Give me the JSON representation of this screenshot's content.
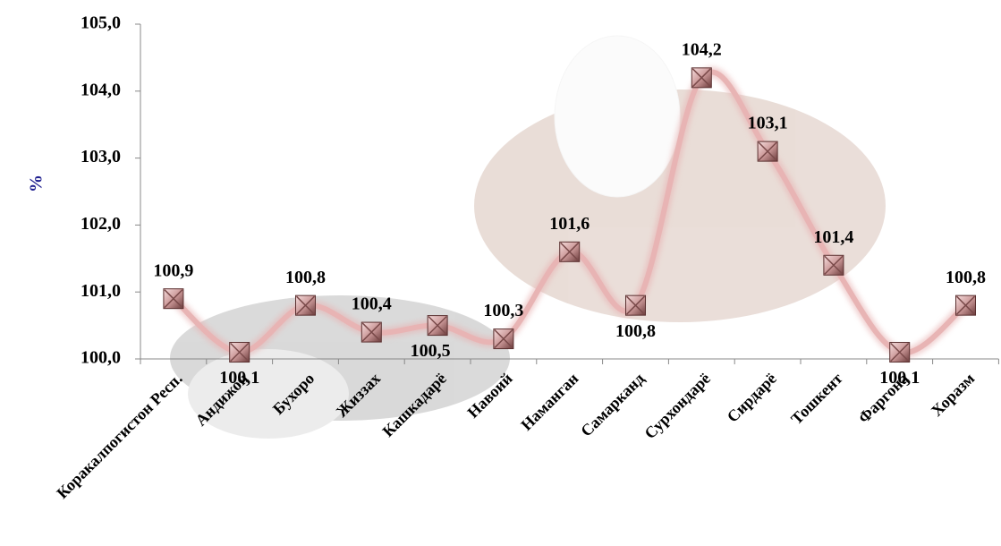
{
  "chart_data": {
    "type": "line",
    "y_label": "%",
    "categories": [
      "Коракалпогистон Респ.",
      "Андижон",
      "Бухоро",
      "Жиззах",
      "Кашкадарё",
      "Навоий",
      "Наманган",
      "Самарканд",
      "Сурхондарё",
      "Сирдарё",
      "Тошкент",
      "Фаргона",
      "Хоразм"
    ],
    "values": [
      100.9,
      100.1,
      100.8,
      100.4,
      100.5,
      100.3,
      101.6,
      100.8,
      104.2,
      103.1,
      101.4,
      100.1,
      100.8
    ],
    "value_labels": [
      "100,9",
      "100,1",
      "100,8",
      "100,4",
      "100,5",
      "100,3",
      "101,6",
      "100,8",
      "104,2",
      "103,1",
      "101,4",
      "100,1",
      "100,8"
    ],
    "color": "#e8b4b4",
    "ylim": [
      100,
      105
    ],
    "yticks": [
      {
        "value": 100,
        "label": "100,0"
      },
      {
        "value": 101,
        "label": "101,0"
      },
      {
        "value": 102,
        "label": "102,0"
      },
      {
        "value": 103,
        "label": "103,0"
      },
      {
        "value": 104,
        "label": "104,0"
      },
      {
        "value": 105,
        "label": "105,0"
      }
    ],
    "grid": false
  }
}
